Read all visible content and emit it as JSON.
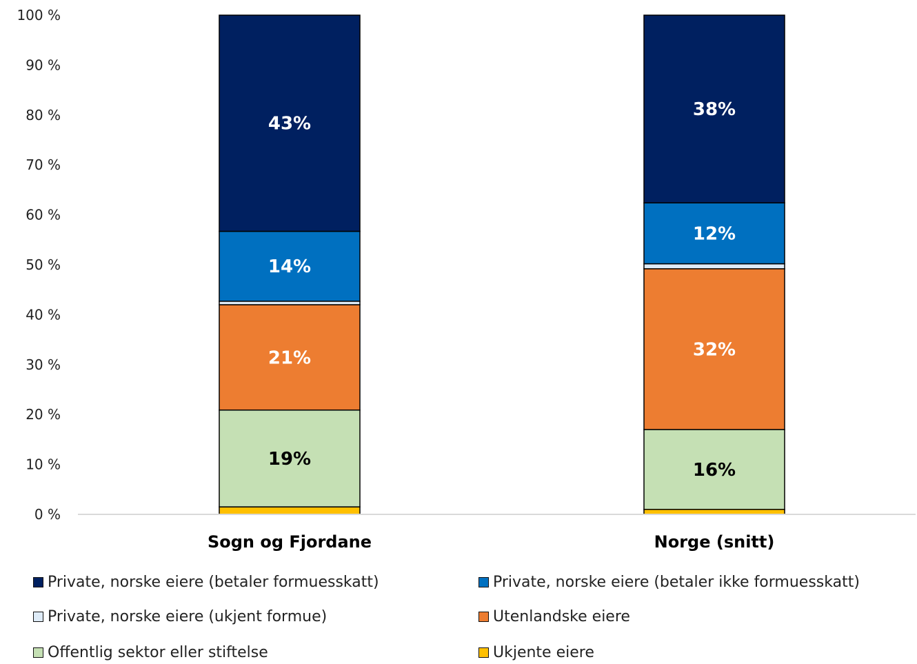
{
  "chart_data": {
    "type": "bar",
    "stacked": true,
    "categories": [
      "Sogn og Fjordane",
      "Norge (snitt)"
    ],
    "yticks": [
      "0 %",
      "10 %",
      "20 %",
      "30 %",
      "40 %",
      "50 %",
      "60 %",
      "70 %",
      "80 %",
      "90 %",
      "100 %"
    ],
    "ylim": [
      0,
      100
    ],
    "grid": false,
    "legend_position": "bottom",
    "series": [
      {
        "name": "Ukjente eiere",
        "values": [
          1.5,
          1
        ],
        "labels": [
          "",
          ""
        ],
        "color": "#FFC000",
        "label_color": "#000000"
      },
      {
        "name": "Offentlig sektor eller stiftelse",
        "values": [
          19.4,
          16
        ],
        "labels": [
          "19%",
          "16%"
        ],
        "color": "#C5E0B4",
        "label_color": "#000000"
      },
      {
        "name": "Utenlandske eiere",
        "values": [
          21.1,
          32.2
        ],
        "labels": [
          "21%",
          "32%"
        ],
        "color": "#ED7D31",
        "label_color": "#ffffff"
      },
      {
        "name": "Private, norske eiere (ukjent formue)",
        "values": [
          0.7,
          1
        ],
        "labels": [
          "",
          ""
        ],
        "color": "#DEEBF7",
        "label_color": "#000000"
      },
      {
        "name": "Private, norske eiere (betaler ikke formuesskatt)",
        "values": [
          14,
          12.2
        ],
        "labels": [
          "14%",
          "12%"
        ],
        "color": "#0070C0",
        "label_color": "#ffffff"
      },
      {
        "name": "Private, norske eiere (betaler formuesskatt)",
        "values": [
          43.3,
          37.6
        ],
        "labels": [
          "43%",
          "38%"
        ],
        "color": "#002060",
        "label_color": "#ffffff"
      }
    ],
    "legend_order": [
      "Private, norske eiere (betaler formuesskatt)",
      "Private, norske eiere (betaler ikke formuesskatt)",
      "Private, norske eiere (ukjent formue)",
      "Utenlandske eiere",
      "Offentlig sektor eller stiftelse",
      "Ukjente eiere"
    ]
  }
}
